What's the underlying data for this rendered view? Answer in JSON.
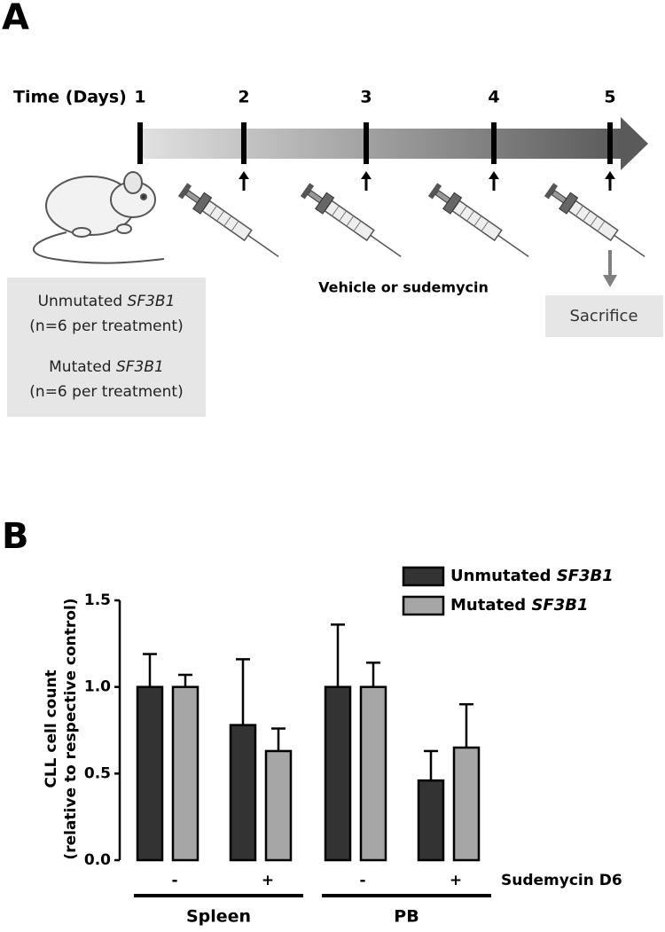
{
  "panel_a": {
    "label": "A",
    "time_label": "Time (Days)",
    "days": [
      "1",
      "2",
      "3",
      "4",
      "5"
    ],
    "groups": [
      "Unmutated SF3B1",
      "(n=6 per treatment)",
      "Mutated SF3B1",
      "(n=6 per treatment)"
    ],
    "treatment": "Vehicle or sudemycin",
    "endpoint": "Sacrifice"
  },
  "chart_data": {
    "type": "bar",
    "panel_label": "B",
    "y_label": [
      "CLL cell count",
      "(relative to respective control)"
    ],
    "x_label": "Sudemycin D6",
    "categories": [
      "-",
      "+",
      "-",
      "+"
    ],
    "groups": [
      {
        "label": "Spleen",
        "categories": [
          0,
          1
        ]
      },
      {
        "label": "PB",
        "categories": [
          2,
          3
        ]
      }
    ],
    "series": [
      {
        "name": "Unmutated SF3B1",
        "color": "#333333",
        "values": [
          1.0,
          0.78,
          1.0,
          0.46
        ],
        "errors": [
          0.19,
          0.38,
          0.36,
          0.17
        ]
      },
      {
        "name": "Mutated SF3B1",
        "color": "#a6a6a6",
        "values": [
          1.0,
          0.63,
          1.0,
          0.65
        ],
        "errors": [
          0.07,
          0.13,
          0.14,
          0.25
        ]
      }
    ],
    "ylim": [
      0,
      1.5
    ],
    "yticks": [
      {
        "value": 0,
        "label": "0.0"
      },
      0.5,
      {
        "value": 1,
        "label": "1.0"
      },
      1.5
    ]
  }
}
